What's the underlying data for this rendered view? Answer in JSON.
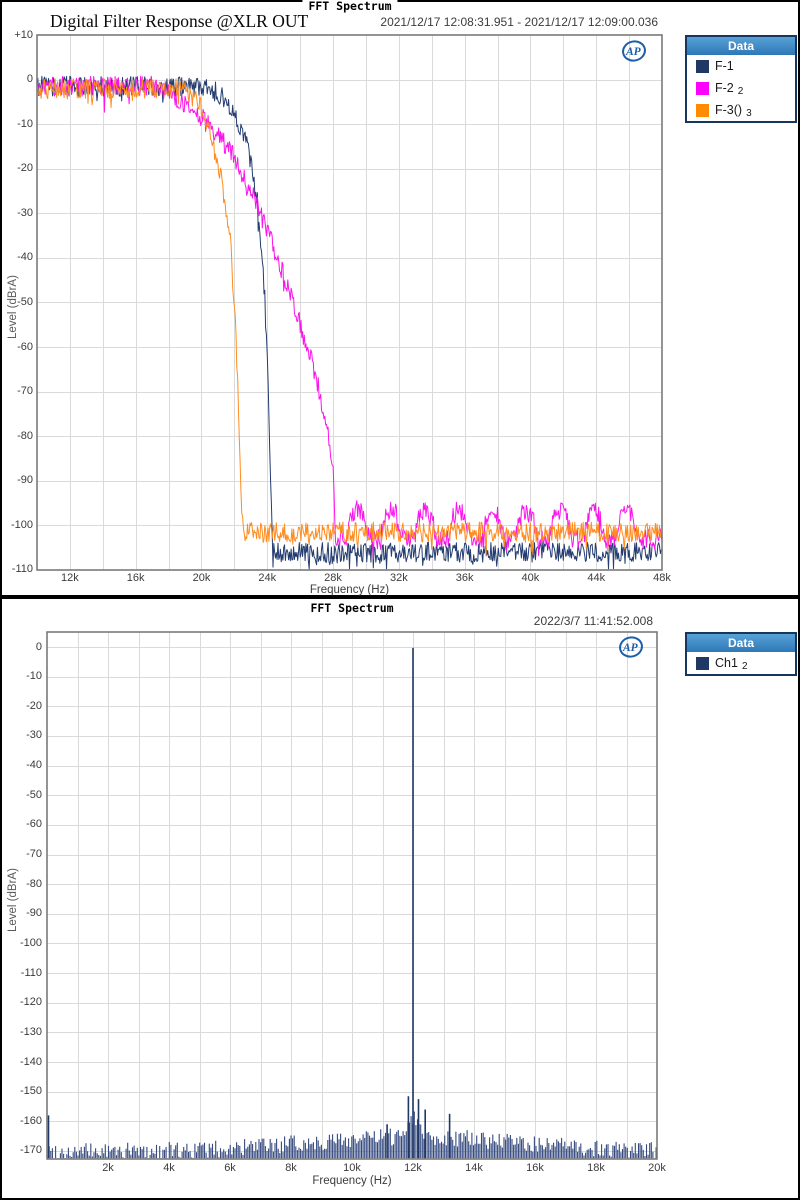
{
  "colors": {
    "grid": "#dadada",
    "plot_border": "#7a7a7a",
    "tick_text": "#3c3c3c",
    "legend_border": "#17365d",
    "legend_header_blue": "#2e77b7",
    "logo_blue": "#1c5fa8",
    "series_navy": "#1f3864",
    "series_magenta": "#ff00ff",
    "series_orange": "#ff8c00"
  },
  "panels": [
    {
      "header_title": "FFT Spectrum",
      "title": "Digital Filter Response @XLR OUT",
      "timestamp": "2021/12/17 12:08:31.951 - 2021/12/17 12:09:00.036",
      "xlabel": "Frequency (Hz)",
      "ylabel": "Level (dBrA)",
      "logo_text": "AP",
      "legend": {
        "header": "Data",
        "items": [
          {
            "label": "F-1",
            "sub": "",
            "color": "#1f3864"
          },
          {
            "label": "F-2",
            "sub": "2",
            "color": "#ff00ff"
          },
          {
            "label": "F-3()",
            "sub": "3",
            "color": "#ff8c00"
          }
        ]
      },
      "x_tick_labels": [
        "12k",
        "16k",
        "20k",
        "24k",
        "28k",
        "32k",
        "36k",
        "40k",
        "44k",
        "48k"
      ],
      "y_tick_labels": [
        "+10",
        "0",
        "-10",
        "-20",
        "-30",
        "-40",
        "-50",
        "-60",
        "-70",
        "-80",
        "-90",
        "-100",
        "-110"
      ]
    },
    {
      "header_title": "FFT Spectrum",
      "title": "",
      "timestamp": "2022/3/7 11:41:52.008",
      "xlabel": "Frequency (Hz)",
      "ylabel": "Level (dBrA)",
      "logo_text": "AP",
      "legend": {
        "header": "Data",
        "items": [
          {
            "label": "Ch1",
            "sub": "2",
            "color": "#1f3864"
          }
        ]
      },
      "x_tick_labels": [
        "2k",
        "4k",
        "6k",
        "8k",
        "10k",
        "12k",
        "14k",
        "16k",
        "18k",
        "20k"
      ],
      "y_tick_labels": [
        "0",
        "-10",
        "-20",
        "-30",
        "-40",
        "-50",
        "-60",
        "-70",
        "-80",
        "-90",
        "-100",
        "-110",
        "-120",
        "-130",
        "-140",
        "-150",
        "-160",
        "-170"
      ]
    }
  ],
  "chart_data": [
    {
      "type": "line",
      "title": "Digital Filter Response @XLR OUT",
      "xlabel": "Frequency (Hz)",
      "ylabel": "Level (dBrA)",
      "x_unit": "kHz",
      "xlim": [
        10,
        48
      ],
      "ylim": [
        -110,
        10
      ],
      "x_major_ticks_kHz": [
        12,
        16,
        20,
        24,
        28,
        32,
        36,
        40,
        44,
        48
      ],
      "x_minor_step_kHz": 2,
      "y_tick_step_dB": 10,
      "grid": true,
      "legend_position": "outside-top-right",
      "series": [
        {
          "name": "F-1",
          "color": "#243c6f",
          "passband_dB": -1.5,
          "envelope_dB_by_kHz": [
            [
              10,
              -1.5
            ],
            [
              20,
              -1.5
            ],
            [
              21,
              -3
            ],
            [
              22,
              -7
            ],
            [
              22.8,
              -15
            ],
            [
              23.4,
              -27
            ],
            [
              23.8,
              -44
            ],
            [
              24.05,
              -68
            ],
            [
              24.25,
              -95
            ],
            [
              24.35,
              -106
            ],
            [
              48,
              -106
            ]
          ],
          "noise_floor_dB": -106,
          "noise_pp_dB": 4.5
        },
        {
          "name": "F-2",
          "color": "#fb14ec",
          "passband_dB": -1.5,
          "envelope_dB_by_kHz": [
            [
              10,
              -1.5
            ],
            [
              17,
              -1.5
            ],
            [
              18,
              -3
            ],
            [
              19,
              -5.5
            ],
            [
              20,
              -8.5
            ],
            [
              21,
              -12.5
            ],
            [
              22,
              -17.5
            ],
            [
              23,
              -25
            ],
            [
              24,
              -34
            ],
            [
              25,
              -44
            ],
            [
              26,
              -55
            ],
            [
              27,
              -67
            ],
            [
              27.6,
              -77
            ],
            [
              28.0,
              -88
            ],
            [
              28.15,
              -103
            ],
            [
              48,
              -103
            ]
          ],
          "noise_floor_dB": -103,
          "noise_pp_dB": 4.5,
          "stopband_images": {
            "first_center_kHz": 29.5,
            "spacing_kHz": 2.05,
            "count": 9,
            "peak_dB": -96.5,
            "falloff_dB_per_kHz2": 14
          }
        },
        {
          "name": "F-3()",
          "color": "#ff8c1e",
          "passband_dB": -2,
          "envelope_dB_by_kHz": [
            [
              10,
              -2
            ],
            [
              19,
              -2
            ],
            [
              19.8,
              -5
            ],
            [
              20.5,
              -11
            ],
            [
              21.2,
              -22
            ],
            [
              21.8,
              -38
            ],
            [
              22.1,
              -58
            ],
            [
              22.3,
              -80
            ],
            [
              22.45,
              -97
            ],
            [
              22.6,
              -101.5
            ],
            [
              48,
              -101.5
            ]
          ],
          "noise_floor_dB": -101.5,
          "noise_pp_dB": 4.5
        }
      ]
    },
    {
      "type": "spectrum-bars",
      "title": "",
      "xlabel": "Frequency (Hz)",
      "ylabel": "Level (dBrA)",
      "x_unit": "kHz",
      "xlim": [
        0,
        20
      ],
      "ylim": [
        -170,
        0
      ],
      "x_major_ticks_kHz": [
        2,
        4,
        6,
        8,
        10,
        12,
        14,
        16,
        18,
        20
      ],
      "x_minor_step_kHz": 1,
      "y_tick_step_dB": 10,
      "grid": true,
      "legend_position": "outside-top-right",
      "series": [
        {
          "name": "Ch1",
          "color": "#1f3864",
          "bar_color": "#34497e",
          "noise_floor_base_dB": -169.5,
          "noise_floor_bumps": [
            {
              "center_kHz": 12,
              "width_kHz": 4.8,
              "height_dB": 5
            },
            {
              "center_kHz": 12,
              "width_kHz": 0.28,
              "height_dB": 7
            }
          ],
          "noise_pp_dB": 4.5,
          "peaks_kHz_dB": [
            [
              0.05,
              -158
            ],
            [
              11.15,
              -161
            ],
            [
              11.85,
              -151.5
            ],
            [
              12.0,
              -0.3
            ],
            [
              12.18,
              -152.5
            ],
            [
              12.4,
              -156
            ],
            [
              13.2,
              -157.5
            ]
          ]
        }
      ]
    }
  ]
}
